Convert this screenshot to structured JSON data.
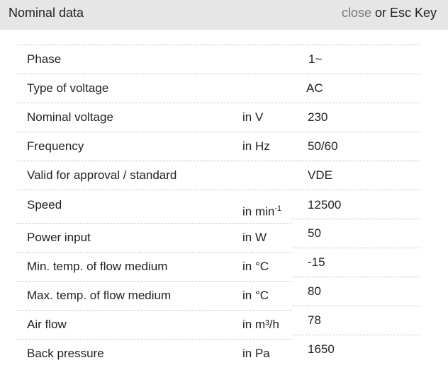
{
  "header": {
    "title": "Nominal data",
    "close_label": "close",
    "close_suffix": " or Esc Key"
  },
  "rows": [
    {
      "label": "Phase",
      "unit": "",
      "value": "1~"
    },
    {
      "label": "Type of voltage",
      "unit": "",
      "value": "AC"
    },
    {
      "label": "Nominal voltage",
      "unit": "in V",
      "value": "230"
    },
    {
      "label": "Frequency",
      "unit": "in Hz",
      "value": "50/60"
    },
    {
      "label": "Valid for approval / standard",
      "unit": "",
      "value": "VDE"
    },
    {
      "label": "Speed",
      "unit": "in min",
      "unit_sup": "-1",
      "value": "12500"
    },
    {
      "label": "Power input",
      "unit": "in W",
      "value": "50"
    },
    {
      "label": "Min. temp. of flow medium",
      "unit": "in °C",
      "value": "-15"
    },
    {
      "label": "Max. temp. of flow medium",
      "unit": "in °C",
      "value": "80"
    },
    {
      "label": "Air flow",
      "unit": "in m³/h",
      "value": "78"
    },
    {
      "label": "Back pressure",
      "unit": "in Pa",
      "value": "1650"
    }
  ]
}
